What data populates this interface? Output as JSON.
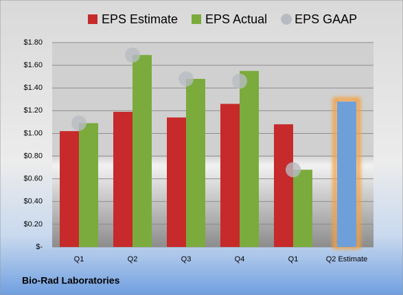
{
  "chart_data": {
    "type": "bar",
    "footer": "Bio-Rad Laboratories",
    "categories": [
      "Q1",
      "Q2",
      "Q3",
      "Q4",
      "Q1",
      "Q2 Estimate"
    ],
    "series": [
      {
        "name": "EPS Estimate",
        "color": "#c62a2a",
        "colors": [
          "#c62a2a",
          "#c62a2a",
          "#c62a2a",
          "#c62a2a",
          "#c62a2a",
          "#6f9fd8"
        ],
        "values": [
          1.02,
          1.19,
          1.14,
          1.26,
          1.08,
          1.28
        ]
      },
      {
        "name": "EPS Actual",
        "color": "#7aab3c",
        "values": [
          1.09,
          1.69,
          1.48,
          1.55,
          0.68,
          null
        ]
      },
      {
        "name": "EPS GAAP",
        "color": "#b8bcc2",
        "marker": "circle",
        "values": [
          1.09,
          1.69,
          1.48,
          1.46,
          0.68,
          null
        ]
      }
    ],
    "ylim": [
      0,
      1.8
    ],
    "yticks": [
      {
        "value": 0,
        "label": "$-"
      },
      {
        "value": 0.2,
        "label": "$0.20"
      },
      {
        "value": 0.4,
        "label": "$0.40"
      },
      {
        "value": 0.6,
        "label": "$0.60"
      },
      {
        "value": 0.8,
        "label": "$0.80"
      },
      {
        "value": 1.0,
        "label": "$1.00"
      },
      {
        "value": 1.2,
        "label": "$1.20"
      },
      {
        "value": 1.4,
        "label": "$1.40"
      },
      {
        "value": 1.6,
        "label": "$1.60"
      },
      {
        "value": 1.8,
        "label": "$1.80"
      }
    ],
    "grid": true
  }
}
